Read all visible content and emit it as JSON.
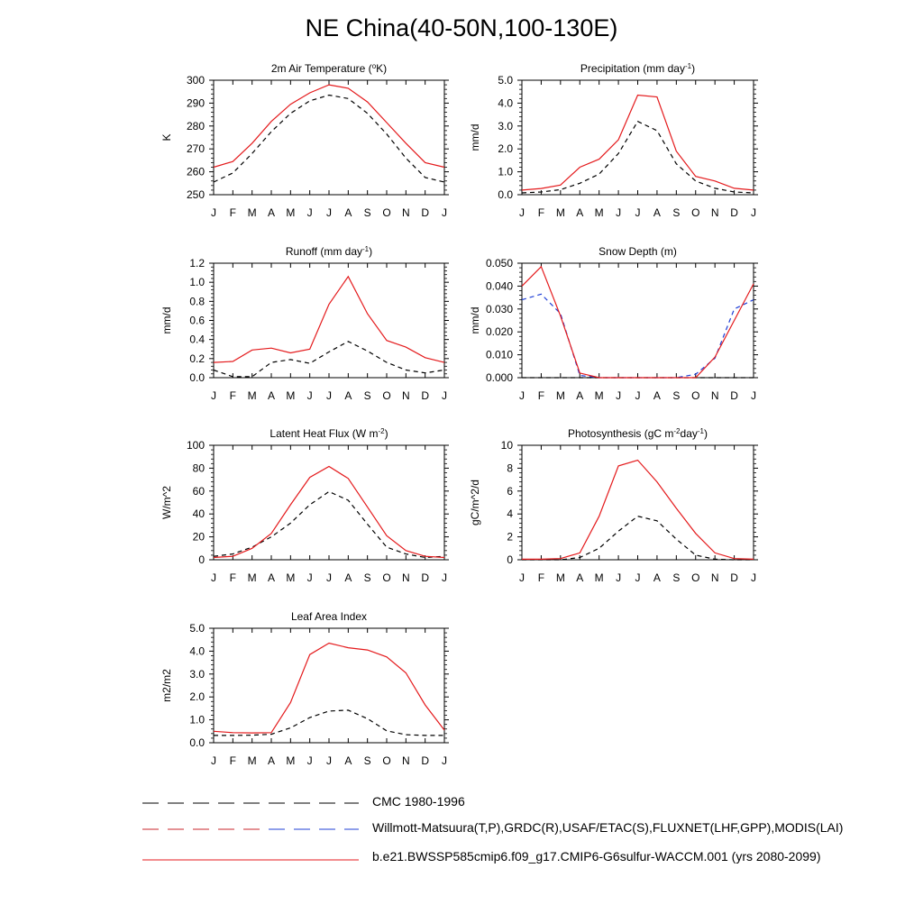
{
  "figure_title": "NE China(40-50N,100-130E)",
  "colors": {
    "model": "#e41a1c",
    "obs": "#000000",
    "obs_alt": "#1f3fd6",
    "red_dash": "#c8252b"
  },
  "legend": [
    {
      "label": "CMC 1980-1996",
      "style": "dashed",
      "colors": [
        "#000000"
      ]
    },
    {
      "label": "Willmott-Matsuura(T,P),GRDC(R),USAF/ETAC(S),FLUXNET(LHF,GPP),MODIS(LAI)",
      "style": "dashed",
      "colors": [
        "#c8252b",
        "#1f3fd6"
      ]
    },
    {
      "label": "b.e21.BWSSP585cmip6.f09_g17.CMIP6-G6sulfur-WACCM.001 (yrs 2080-2099)",
      "style": "solid",
      "colors": [
        "#e41a1c"
      ]
    }
  ],
  "chart_data": [
    {
      "type": "line",
      "title": "2m Air Temperature (°K)",
      "title_parts": [
        "2m Air Temperature (",
        "o",
        "K)"
      ],
      "ylabel": "K",
      "x": [
        "J",
        "F",
        "M",
        "A",
        "M",
        "J",
        "J",
        "A",
        "S",
        "O",
        "N",
        "D",
        "J"
      ],
      "ylim": [
        250,
        300
      ],
      "yticks": [
        "250",
        "260",
        "270",
        "280",
        "290",
        "300"
      ],
      "series": [
        {
          "role": "model",
          "values": [
            262,
            264.5,
            272.5,
            282,
            289.5,
            294.5,
            298,
            296.5,
            290.5,
            281.5,
            272.5,
            264,
            262
          ]
        },
        {
          "role": "obs",
          "values": [
            255.5,
            259.5,
            268,
            277.5,
            285.5,
            291,
            293.5,
            292,
            285.5,
            276.5,
            266,
            257.5,
            255.5
          ]
        }
      ]
    },
    {
      "type": "line",
      "title": "Precipitation (mm day-1)",
      "title_parts": [
        "Precipitation (mm day",
        "-1",
        ")"
      ],
      "ylabel": "mm/d",
      "x": [
        "J",
        "F",
        "M",
        "A",
        "M",
        "J",
        "J",
        "A",
        "S",
        "O",
        "N",
        "D",
        "J"
      ],
      "ylim": [
        0,
        5
      ],
      "yticks": [
        "0.0",
        "1.0",
        "2.0",
        "3.0",
        "4.0",
        "5.0"
      ],
      "series": [
        {
          "role": "model",
          "values": [
            0.2,
            0.27,
            0.42,
            1.2,
            1.55,
            2.4,
            4.35,
            4.27,
            1.9,
            0.8,
            0.6,
            0.28,
            0.2
          ]
        },
        {
          "role": "obs",
          "values": [
            0.08,
            0.12,
            0.22,
            0.5,
            0.9,
            1.8,
            3.2,
            2.8,
            1.35,
            0.6,
            0.28,
            0.12,
            0.08
          ]
        }
      ]
    },
    {
      "type": "line",
      "title": "Runoff (mm day-1)",
      "title_parts": [
        "Runoff (mm day",
        "-1",
        ")"
      ],
      "ylabel": "mm/d",
      "x": [
        "J",
        "F",
        "M",
        "A",
        "M",
        "J",
        "J",
        "A",
        "S",
        "O",
        "N",
        "D",
        "J"
      ],
      "ylim": [
        0,
        1.2
      ],
      "yticks": [
        "0.0",
        "0.2",
        "0.4",
        "0.6",
        "0.8",
        "1.0",
        "1.2"
      ],
      "series": [
        {
          "role": "model",
          "values": [
            0.16,
            0.17,
            0.29,
            0.31,
            0.26,
            0.3,
            0.77,
            1.06,
            0.67,
            0.39,
            0.32,
            0.21,
            0.16
          ]
        },
        {
          "role": "obs",
          "values": [
            0.08,
            0.01,
            0.01,
            0.16,
            0.19,
            0.15,
            0.27,
            0.38,
            0.28,
            0.16,
            0.08,
            0.05,
            0.08
          ]
        }
      ]
    },
    {
      "type": "line",
      "title": "Snow Depth (m)",
      "title_parts": [
        "Snow Depth (m)"
      ],
      "ylabel": "mm/d",
      "x": [
        "J",
        "F",
        "M",
        "A",
        "M",
        "J",
        "J",
        "A",
        "S",
        "O",
        "N",
        "D",
        "J"
      ],
      "ylim": [
        0,
        0.05
      ],
      "yticks": [
        "0.000",
        "0.010",
        "0.020",
        "0.030",
        "0.040",
        "0.050"
      ],
      "series": [
        {
          "role": "model",
          "values": [
            0.04,
            0.0485,
            0.027,
            0.002,
            0.0,
            0.0,
            0.0,
            0.0,
            0.0,
            0.0,
            0.009,
            0.025,
            0.041
          ]
        },
        {
          "role": "obs_alt",
          "values": [
            0.034,
            0.0365,
            0.028,
            0.001,
            0.0,
            0.0,
            0.0,
            0.0,
            0.0,
            0.0015,
            0.0085,
            0.03,
            0.034
          ]
        },
        {
          "role": "obs",
          "values": [
            0.0,
            0.0,
            0.0,
            0.0,
            0.0,
            0.0,
            0.0,
            0.0,
            0.0,
            0.0,
            0.0,
            0.0,
            0.0
          ]
        }
      ]
    },
    {
      "type": "line",
      "title": "Latent Heat Flux (W m-2)",
      "title_parts": [
        "Latent Heat Flux (W m",
        "-2",
        ")"
      ],
      "ylabel": "W/m^2",
      "x": [
        "J",
        "F",
        "M",
        "A",
        "M",
        "J",
        "J",
        "A",
        "S",
        "O",
        "N",
        "D",
        "J"
      ],
      "ylim": [
        0,
        100
      ],
      "yticks": [
        "0",
        "20",
        "40",
        "60",
        "80",
        "100"
      ],
      "series": [
        {
          "role": "model",
          "values": [
            2,
            3,
            10,
            23,
            48,
            72,
            81.5,
            71,
            46,
            21,
            8,
            3,
            2
          ]
        },
        {
          "role": "obs",
          "values": [
            3,
            5,
            11,
            20,
            32,
            48,
            59.5,
            52,
            31,
            11,
            5,
            2,
            3
          ]
        }
      ]
    },
    {
      "type": "line",
      "title": "Photosynthesis (gC m-2day-1)",
      "title_parts": [
        "Photosynthesis (gC m",
        "-2",
        "day",
        "-1",
        ")"
      ],
      "ylabel": "gC/m^2/d",
      "x": [
        "J",
        "F",
        "M",
        "A",
        "M",
        "J",
        "J",
        "A",
        "S",
        "O",
        "N",
        "D",
        "J"
      ],
      "ylim": [
        0,
        10
      ],
      "yticks": [
        "0",
        "2",
        "4",
        "6",
        "8",
        "10"
      ],
      "series": [
        {
          "role": "model",
          "values": [
            0.05,
            0.05,
            0.1,
            0.6,
            3.8,
            8.2,
            8.7,
            6.8,
            4.5,
            2.3,
            0.6,
            0.1,
            0.05
          ]
        },
        {
          "role": "obs",
          "values": [
            0.0,
            0.0,
            0.0,
            0.2,
            1.0,
            2.5,
            3.8,
            3.4,
            1.8,
            0.4,
            0.05,
            0.0,
            0.0
          ]
        }
      ]
    },
    {
      "type": "line",
      "title": "Leaf Area Index",
      "title_parts": [
        "Leaf Area Index"
      ],
      "ylabel": "m2/m2",
      "x": [
        "J",
        "F",
        "M",
        "A",
        "M",
        "J",
        "J",
        "A",
        "S",
        "O",
        "N",
        "D",
        "J"
      ],
      "ylim": [
        0,
        5
      ],
      "yticks": [
        "0.0",
        "1.0",
        "2.0",
        "3.0",
        "4.0",
        "5.0"
      ],
      "series": [
        {
          "role": "model",
          "values": [
            0.5,
            0.44,
            0.43,
            0.44,
            1.75,
            3.85,
            4.35,
            4.15,
            4.05,
            3.75,
            3.05,
            1.65,
            0.55
          ]
        },
        {
          "role": "obs",
          "values": [
            0.32,
            0.32,
            0.33,
            0.37,
            0.65,
            1.1,
            1.38,
            1.42,
            1.05,
            0.52,
            0.35,
            0.32,
            0.32
          ]
        }
      ]
    }
  ]
}
